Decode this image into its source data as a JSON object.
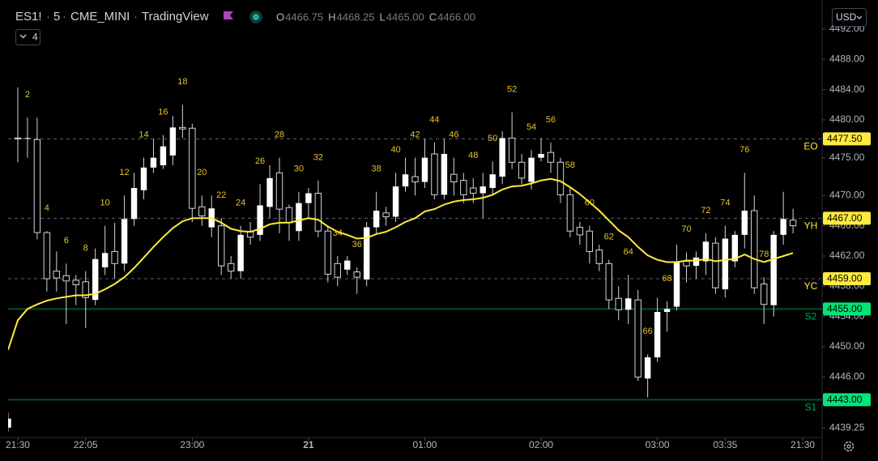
{
  "header": {
    "symbol": "ES1!",
    "interval": "5",
    "exchange": "CME_MINI",
    "source": "TradingView",
    "ohlc": [
      {
        "label": "O",
        "value": "4466.75"
      },
      {
        "label": "H",
        "value": "4468.25"
      },
      {
        "label": "L",
        "value": "4465.00"
      },
      {
        "label": "C",
        "value": "4466.00"
      }
    ],
    "indicators_count": "4",
    "currency": "USD"
  },
  "chart_data": {
    "type": "candlestick",
    "up_color": "#ffffff",
    "down_color": "#000000",
    "wick_color": "#d1d4dc",
    "open": [
      4439.3,
      4477.6,
      4477.5,
      4477.4,
      4465.1,
      4460.0,
      4459.4,
      4458.8,
      4458.6,
      4456.2,
      4460.5,
      4462.6,
      4461.0,
      4466.9,
      4470.7,
      4473.7,
      4474.0,
      4475.3,
      4479.0,
      4478.9,
      4468.5,
      4465.8,
      4466.0,
      4461.0,
      4460.0,
      4465.2,
      4464.8,
      4468.5,
      4473.0,
      4468.4,
      4465.3,
      4469.0,
      4470.3,
      4465.3,
      4461.0,
      4460.2,
      4459.9,
      4458.9,
      4465.8,
      4467.7,
      4467.2,
      4471.2,
      4472.5,
      4471.8,
      4475.5,
      4470.1,
      4472.8,
      4472.0,
      4471.0,
      4470.3,
      4471.0,
      4472.5,
      4477.6,
      4474.4,
      4471.8,
      4475.0,
      4475.7,
      4474.4,
      4470.1,
      4465.8,
      4465.3,
      4462.8,
      4461.0,
      4456.4,
      4454.9,
      4456.2,
      4445.8,
      4448.6,
      4454.6,
      4455.3,
      4461.3,
      4460.7,
      4461.3,
      4463.7,
      4457.6,
      4461.3,
      4464.8,
      4468.0,
      4458.3,
      4455.5,
      4464.8,
      4466.75
    ],
    "high": [
      4441.3,
      4484.3,
      4480.3,
      4480.3,
      4465.3,
      4462.6,
      4461.0,
      4459.5,
      4460.0,
      4463.0,
      4466.0,
      4466.4,
      4470.0,
      4473.0,
      4475.0,
      4477.5,
      4478.0,
      4480.5,
      4482.0,
      4479.5,
      4470.0,
      4470.0,
      4467.0,
      4462.0,
      4466.0,
      4466.5,
      4471.5,
      4474.0,
      4475.0,
      4468.8,
      4470.5,
      4471.0,
      4472.0,
      4466.0,
      4462.0,
      4462.0,
      4460.5,
      4466.5,
      4470.5,
      4468.5,
      4473.0,
      4475.0,
      4475.0,
      4477.5,
      4477.0,
      4477.5,
      4475.0,
      4473.0,
      4472.3,
      4473.0,
      4474.5,
      4478.5,
      4481.0,
      4475.5,
      4476.0,
      4477.6,
      4477.0,
      4475.0,
      4471.0,
      4466.5,
      4466.0,
      4463.5,
      4461.5,
      4458.0,
      4459.5,
      4457.5,
      4449.0,
      4456.5,
      4456.0,
      4463.5,
      4462.5,
      4462.6,
      4465.0,
      4464.5,
      4466.0,
      4465.3,
      4473.0,
      4470.0,
      4459.2,
      4465.3,
      4470.5,
      4468.25
    ],
    "low": [
      4438.8,
      4474.4,
      4475.0,
      4464.2,
      4457.3,
      4457.3,
      4453.0,
      4455.5,
      4452.5,
      4455.5,
      4459.5,
      4459.0,
      4460.0,
      4466.0,
      4469.5,
      4473.0,
      4473.5,
      4474.0,
      4477.6,
      4466.5,
      4466.0,
      4464.5,
      4459.5,
      4459.0,
      4459.0,
      4463.5,
      4464.0,
      4467.0,
      4465.0,
      4464.0,
      4464.0,
      4467.0,
      4464.5,
      4458.5,
      4458.0,
      4459.5,
      4457.0,
      4458.0,
      4465.0,
      4466.0,
      4466.5,
      4470.5,
      4470.0,
      4471.0,
      4469.5,
      4469.5,
      4470.0,
      4469.0,
      4469.0,
      4467.0,
      4470.0,
      4471.5,
      4473.5,
      4471.5,
      4470.8,
      4474.5,
      4473.0,
      4469.0,
      4464.5,
      4463.5,
      4461.0,
      4460.0,
      4455.0,
      4453.5,
      4453.0,
      4445.5,
      4443.3,
      4448.0,
      4452.0,
      4454.8,
      4458.5,
      4459.0,
      4459.5,
      4457.0,
      4456.5,
      4460.5,
      4463.0,
      4457.0,
      4453.0,
      4454.0,
      4463.5,
      4465.0
    ],
    "close": [
      4440.5,
      4477.5,
      4477.6,
      4465.1,
      4459.0,
      4459.1,
      4458.7,
      4458.2,
      4456.5,
      4461.6,
      4462.4,
      4461.0,
      4466.9,
      4471.0,
      4473.7,
      4475.0,
      4476.5,
      4479.0,
      4478.8,
      4468.3,
      4467.3,
      4468.3,
      4460.7,
      4460.0,
      4464.8,
      4464.5,
      4468.7,
      4472.3,
      4468.2,
      4466.4,
      4469.0,
      4470.3,
      4465.3,
      4459.6,
      4459.2,
      4461.4,
      4459.2,
      4465.8,
      4468.0,
      4467.2,
      4471.2,
      4472.8,
      4471.8,
      4475.0,
      4470.1,
      4475.5,
      4471.8,
      4470.1,
      4470.3,
      4471.2,
      4472.8,
      4477.6,
      4474.4,
      4472.3,
      4475.0,
      4475.5,
      4474.4,
      4470.1,
      4465.3,
      4464.8,
      4462.6,
      4461.0,
      4456.2,
      4454.9,
      4456.4,
      4446.0,
      4448.6,
      4454.6,
      4455.0,
      4461.3,
      4460.7,
      4461.8,
      4463.9,
      4457.8,
      4464.3,
      4464.8,
      4468.0,
      4457.8,
      4455.6,
      4464.8,
      4466.9,
      4466.0
    ],
    "ema": {
      "color": "#ffeb3b",
      "values": [
        4449.6,
        4453.5,
        4455.0,
        4455.6,
        4456.1,
        4456.4,
        4456.6,
        4456.8,
        4456.8,
        4457.0,
        4457.6,
        4458.3,
        4459.2,
        4460.4,
        4461.8,
        4463.2,
        4464.5,
        4465.7,
        4466.6,
        4467.0,
        4467.0,
        4467.0,
        4466.4,
        4465.6,
        4465.3,
        4465.2,
        4465.6,
        4466.2,
        4466.4,
        4466.4,
        4466.7,
        4467.0,
        4466.8,
        4465.9,
        4465.2,
        4464.8,
        4464.3,
        4464.4,
        4464.9,
        4465.2,
        4465.8,
        4466.5,
        4467.0,
        4467.9,
        4468.2,
        4468.8,
        4469.2,
        4469.4,
        4469.5,
        4469.7,
        4470.1,
        4470.8,
        4471.2,
        4471.3,
        4471.6,
        4472.0,
        4472.2,
        4471.9,
        4471.1,
        4470.2,
        4469.1,
        4468.0,
        4466.7,
        4465.4,
        4464.5,
        4463.2,
        4462.1,
        4461.5,
        4461.2,
        4461.2,
        4461.4,
        4461.4,
        4461.6,
        4461.3,
        4461.5,
        4461.6,
        4462.2,
        4461.6,
        4461.2,
        4461.6,
        4462.0,
        4462.4
      ]
    },
    "bar_labels": {
      "color": "#e6c229",
      "values": [
        2,
        4,
        6,
        8,
        10,
        12,
        14,
        16,
        18,
        20,
        22,
        24,
        26,
        28,
        30,
        32,
        34,
        36,
        38,
        40,
        42,
        44,
        46,
        48,
        50,
        52,
        54,
        56,
        58,
        60,
        62,
        64,
        66,
        68,
        70,
        72,
        74,
        76,
        78
      ]
    },
    "levels": [
      {
        "name": "EO",
        "value": 4477.5,
        "label": "4477.50",
        "color": "#ffeb3b",
        "style": "dashed"
      },
      {
        "name": "YH",
        "value": 4467,
        "label": "4467.00",
        "color": "#ffeb3b",
        "style": "dashed"
      },
      {
        "name": "YC",
        "value": 4459,
        "label": "4459.00",
        "color": "#ffeb3b",
        "style": "dashed"
      },
      {
        "name": "S2",
        "value": 4455,
        "label": "4455.00",
        "color": "#00e676",
        "style": "solid"
      },
      {
        "name": "S1",
        "value": 4443,
        "label": "4443.00",
        "color": "#00e676",
        "style": "solid"
      }
    ],
    "xlim": [
      0,
      84
    ],
    "xticks": [
      {
        "value": 1,
        "label": "21:30"
      },
      {
        "value": 8,
        "label": "22:05"
      },
      {
        "value": 19,
        "label": "23:00"
      },
      {
        "value": 31,
        "label": "21"
      },
      {
        "value": 43,
        "label": "01:00"
      },
      {
        "value": 55,
        "label": "02:00"
      },
      {
        "value": 67,
        "label": "03:00"
      },
      {
        "value": 74,
        "label": "03:35"
      },
      {
        "value": 82,
        "label": "21:30"
      }
    ],
    "ylim": [
      4438,
      4495
    ],
    "yticks": [
      {
        "value": 4492,
        "label": "4492.00"
      },
      {
        "value": 4488,
        "label": "4488.00"
      },
      {
        "value": 4484,
        "label": "4484.00"
      },
      {
        "value": 4480,
        "label": "4480.00"
      },
      {
        "value": 4475,
        "label": "4475.00"
      },
      {
        "value": 4470,
        "label": "4470.00"
      },
      {
        "value": 4466,
        "label": "4466.00"
      },
      {
        "value": 4462,
        "label": "4462.00"
      },
      {
        "value": 4458,
        "label": "4458.00"
      },
      {
        "value": 4454,
        "label": "4454.00"
      },
      {
        "value": 4450,
        "label": "4450.00"
      },
      {
        "value": 4446,
        "label": "4446.00"
      },
      4439.25
    ]
  }
}
